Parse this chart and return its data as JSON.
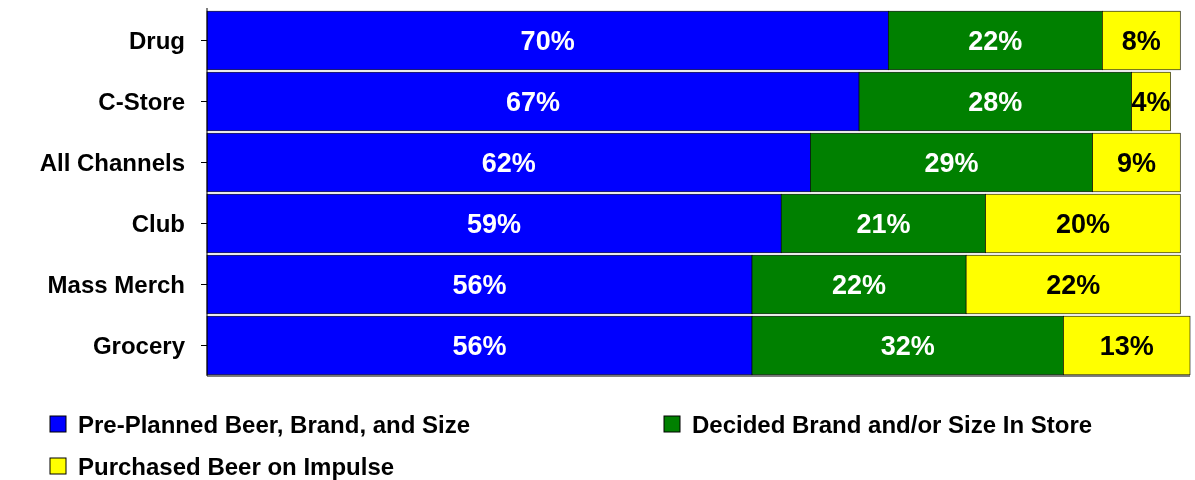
{
  "chart_data": {
    "type": "bar",
    "orientation": "horizontal",
    "stacked": true,
    "categories": [
      "Drug",
      "C-Store",
      "All Channels",
      "Club",
      "Mass Merch",
      "Grocery"
    ],
    "series": [
      {
        "name": "Pre-Planned Beer, Brand, and Size",
        "color": "#0000ff",
        "values": [
          70,
          67,
          62,
          59,
          56,
          56
        ],
        "value_labels": [
          "70%",
          "67%",
          "62%",
          "59%",
          "56%",
          "56%"
        ]
      },
      {
        "name": "Decided Brand and/or Size In Store",
        "color": "#008000",
        "values": [
          22,
          28,
          29,
          21,
          22,
          32
        ],
        "value_labels": [
          "22%",
          "28%",
          "29%",
          "21%",
          "22%",
          "32%"
        ]
      },
      {
        "name": "Purchased Beer on Impulse",
        "color": "#ffff00",
        "values": [
          8,
          4,
          9,
          20,
          22,
          13
        ],
        "value_labels": [
          "8%",
          "4%",
          "9%",
          "20%",
          "22%",
          "13%"
        ]
      }
    ],
    "legend": "bottom"
  }
}
